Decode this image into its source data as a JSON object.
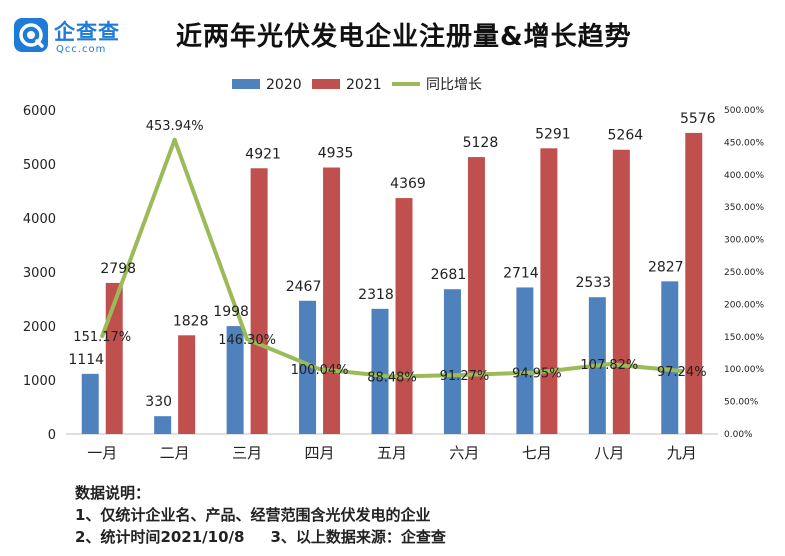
{
  "brand": {
    "name": "企查查",
    "domain": "Qcc.com",
    "color": "#1f7bd8"
  },
  "title": "近两年光伏发电企业注册量&增长趋势",
  "chart_data": {
    "type": "bar",
    "categories": [
      "一月",
      "二月",
      "三月",
      "四月",
      "五月",
      "六月",
      "七月",
      "八月",
      "九月"
    ],
    "series": [
      {
        "name": "2020",
        "type": "bar",
        "color": "#4f81bd",
        "values": [
          1114,
          330,
          1998,
          2467,
          2318,
          2681,
          2714,
          2533,
          2827
        ],
        "labels": [
          "1114",
          "330",
          "1998",
          "2467",
          "2318",
          "2681",
          "2714",
          "2533",
          "2827"
        ]
      },
      {
        "name": "2021",
        "type": "bar",
        "color": "#c0504d",
        "values": [
          2798,
          1828,
          4921,
          4935,
          4369,
          5128,
          5291,
          5264,
          5576
        ],
        "labels": [
          "2798",
          "1828",
          "4921",
          "4935",
          "4369",
          "5128",
          "5291",
          "5264",
          "5576"
        ]
      },
      {
        "name": "同比增长",
        "type": "line",
        "axis": "right",
        "color": "#9bbb59",
        "values": [
          151.17,
          453.94,
          146.3,
          100.04,
          88.48,
          91.27,
          94.95,
          107.82,
          97.24
        ],
        "labels": [
          "151.17%",
          "453.94%",
          "146.30%",
          "100.04%",
          "88.48%",
          "91.27%",
          "94.95%",
          "107.82%",
          "97.24%"
        ]
      }
    ],
    "ylim": [
      0,
      6000
    ],
    "yticks": [
      "0",
      "1000",
      "2000",
      "3000",
      "4000",
      "5000",
      "6000"
    ],
    "y2lim": [
      0,
      500
    ],
    "y2ticks": [
      "0.00%",
      "50.00%",
      "100.00%",
      "150.00%",
      "200.00%",
      "250.00%",
      "300.00%",
      "350.00%",
      "400.00%",
      "450.00%",
      "500.00%"
    ],
    "legend": "top-center",
    "grid": false
  },
  "notes": {
    "heading": "数据说明：",
    "line1": "1、仅统计企业名、产品、经营范围含光伏发电的企业",
    "line2a": "2、统计时间2021/10/8",
    "line2b": "3、以上数据来源：企查查"
  }
}
